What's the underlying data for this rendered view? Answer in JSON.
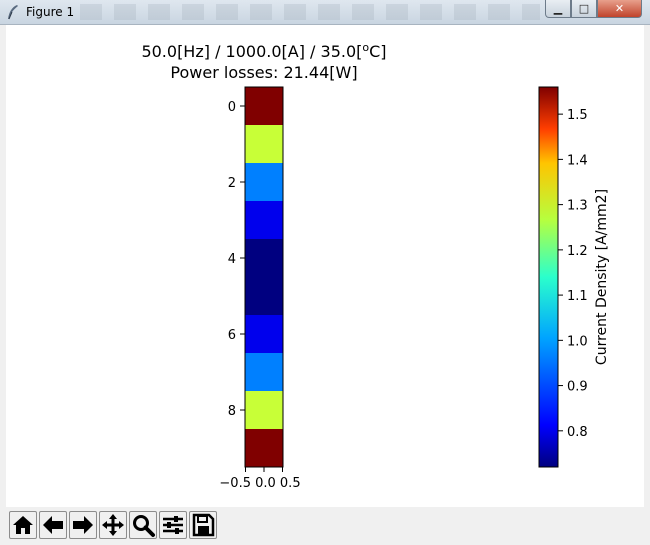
{
  "window": {
    "title": "Figure 1",
    "controls": {
      "minimize": "▁",
      "maximize": "□",
      "close": "✕"
    }
  },
  "plot": {
    "title_line1": "50.0[Hz] / 1000.0[A] / 35.0[",
    "title_deg_o": "o",
    "title_deg_c": "C]",
    "title_line2": "Power losses: 21.44[W]",
    "y_ticks": [
      "0",
      "2",
      "4",
      "6",
      "8"
    ],
    "x_tick_text": "−0.5 0.0 0.5",
    "colorbar_label": "Current Density [A/mm2]",
    "colorbar_ticks": [
      "1.5",
      "1.4",
      "1.3",
      "1.2",
      "1.1",
      "1.0",
      "0.9",
      "0.8"
    ]
  },
  "chart_data": {
    "type": "heatmap",
    "title": "50.0[Hz] / 1000.0[A] / 35.0[oC] Power losses: 21.44[W]",
    "rows": [
      0,
      1,
      2,
      3,
      4,
      5,
      6,
      7,
      8,
      9
    ],
    "cols": [
      0
    ],
    "values": [
      1.56,
      1.2,
      0.93,
      0.81,
      0.72,
      0.72,
      0.81,
      0.93,
      1.2,
      1.56
    ],
    "colormap": "jet",
    "vmin": 0.72,
    "vmax": 1.56,
    "colorbar_label": "Current Density [A/mm2]",
    "colorbar_ticks": [
      0.8,
      0.9,
      1.0,
      1.1,
      1.2,
      1.3,
      1.4,
      1.5
    ]
  },
  "toolbar": {
    "buttons": [
      {
        "name": "home-button",
        "icon": "home-icon"
      },
      {
        "name": "back-button",
        "icon": "arrow-left-icon"
      },
      {
        "name": "forward-button",
        "icon": "arrow-right-icon"
      },
      {
        "name": "pan-button",
        "icon": "move-icon"
      },
      {
        "name": "zoom-button",
        "icon": "magnifier-icon"
      },
      {
        "name": "configure-subplots-button",
        "icon": "sliders-icon"
      },
      {
        "name": "save-button",
        "icon": "floppy-icon"
      }
    ]
  }
}
